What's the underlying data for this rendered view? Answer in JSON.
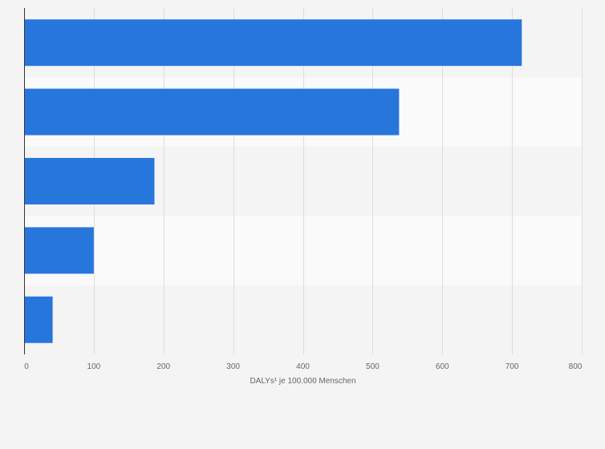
{
  "chart_data": {
    "type": "bar",
    "orientation": "horizontal",
    "title": "",
    "xlabel": "DALYs¹ je 100.000 Menschen",
    "ylabel": "",
    "categories": [
      "",
      "",
      "",
      "",
      ""
    ],
    "values": [
      714,
      538,
      187,
      100,
      41
    ],
    "xlim": [
      0,
      800
    ],
    "xticks": [
      0,
      100,
      200,
      300,
      400,
      500,
      600,
      700,
      800
    ],
    "xtick_labels": [
      "0",
      "100",
      "200",
      "300",
      "400",
      "500",
      "600",
      "700",
      "800"
    ],
    "grid": true,
    "legend": "none",
    "colors": {
      "bar": "#2776dc",
      "band_dark": "#f4f4f4",
      "band_light": "#fafafa",
      "grid": "#dddddd",
      "axis": "#333333",
      "text": "#666666"
    }
  }
}
